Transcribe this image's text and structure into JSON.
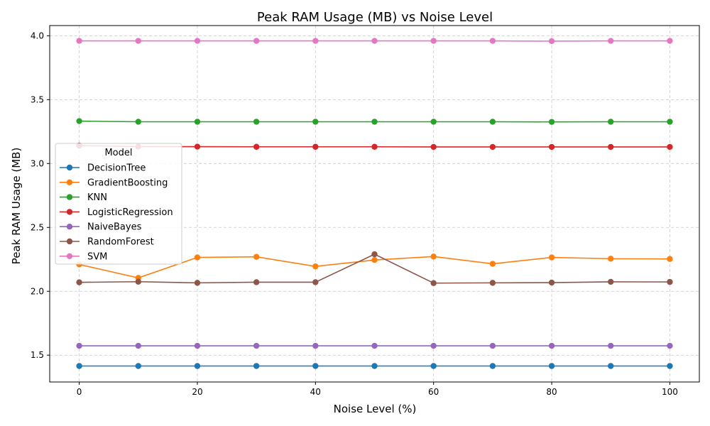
{
  "chart_data": {
    "type": "line",
    "title": "Peak RAM Usage (MB) vs Noise Level",
    "xlabel": "Noise Level (%)",
    "ylabel": "Peak RAM Usage (MB)",
    "xlim": [
      -5,
      105
    ],
    "ylim": [
      1.29,
      4.08
    ],
    "x_ticks": [
      0,
      20,
      40,
      60,
      80,
      100
    ],
    "x_tick_labels": [
      "0",
      "20",
      "40",
      "60",
      "80",
      "100"
    ],
    "y_ticks": [
      1.5,
      2.0,
      2.5,
      3.0,
      3.5,
      4.0
    ],
    "y_tick_labels": [
      "1.5",
      "2.0",
      "2.5",
      "3.0",
      "3.5",
      "4.0"
    ],
    "grid": true,
    "legend": {
      "title": "Model",
      "placement": "center-left"
    },
    "x": [
      0,
      10,
      20,
      30,
      40,
      50,
      60,
      70,
      80,
      90,
      100
    ],
    "series": [
      {
        "name": "DecisionTree",
        "color": "#1f77b4",
        "values": [
          1.415,
          1.415,
          1.415,
          1.415,
          1.415,
          1.415,
          1.415,
          1.415,
          1.415,
          1.415,
          1.415
        ]
      },
      {
        "name": "GradientBoosting",
        "color": "#ff7f0e",
        "values": [
          2.21,
          2.105,
          2.265,
          2.27,
          2.195,
          2.245,
          2.272,
          2.215,
          2.265,
          2.255,
          2.253
        ]
      },
      {
        "name": "KNN",
        "color": "#2ca02c",
        "values": [
          3.332,
          3.327,
          3.327,
          3.327,
          3.327,
          3.327,
          3.327,
          3.327,
          3.326,
          3.327,
          3.327
        ]
      },
      {
        "name": "LogisticRegression",
        "color": "#d62728",
        "values": [
          3.14,
          3.133,
          3.132,
          3.131,
          3.131,
          3.131,
          3.13,
          3.13,
          3.13,
          3.13,
          3.13
        ]
      },
      {
        "name": "NaiveBayes",
        "color": "#9467bd",
        "values": [
          1.573,
          1.573,
          1.573,
          1.573,
          1.573,
          1.573,
          1.573,
          1.573,
          1.573,
          1.573,
          1.573
        ]
      },
      {
        "name": "RandomForest",
        "color": "#8c564b",
        "values": [
          2.07,
          2.075,
          2.066,
          2.071,
          2.071,
          2.29,
          2.064,
          2.066,
          2.068,
          2.074,
          2.073
        ]
      },
      {
        "name": "SVM",
        "color": "#e377c2",
        "values": [
          3.96,
          3.96,
          3.96,
          3.96,
          3.96,
          3.96,
          3.96,
          3.96,
          3.958,
          3.96,
          3.96
        ]
      }
    ]
  }
}
